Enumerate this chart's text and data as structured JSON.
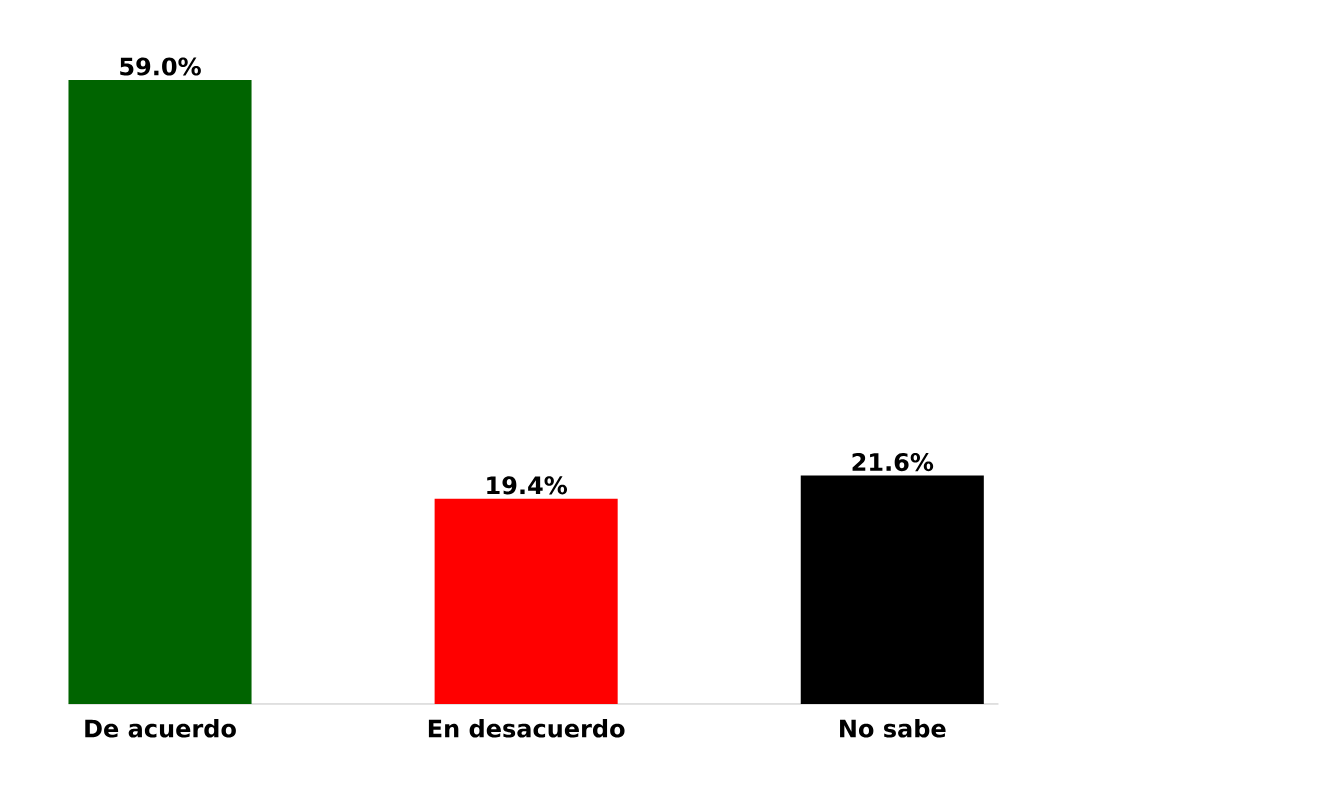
{
  "chart_data": {
    "type": "bar",
    "categories": [
      "De acuerdo",
      "En desacuerdo",
      "No sabe"
    ],
    "values": [
      59.0,
      19.4,
      21.6
    ],
    "colors": [
      "#006400",
      "#ff0000",
      "#000000"
    ],
    "value_labels": [
      "59.0%",
      "19.4%",
      "21.6%"
    ],
    "tick_labels": "x"
  }
}
